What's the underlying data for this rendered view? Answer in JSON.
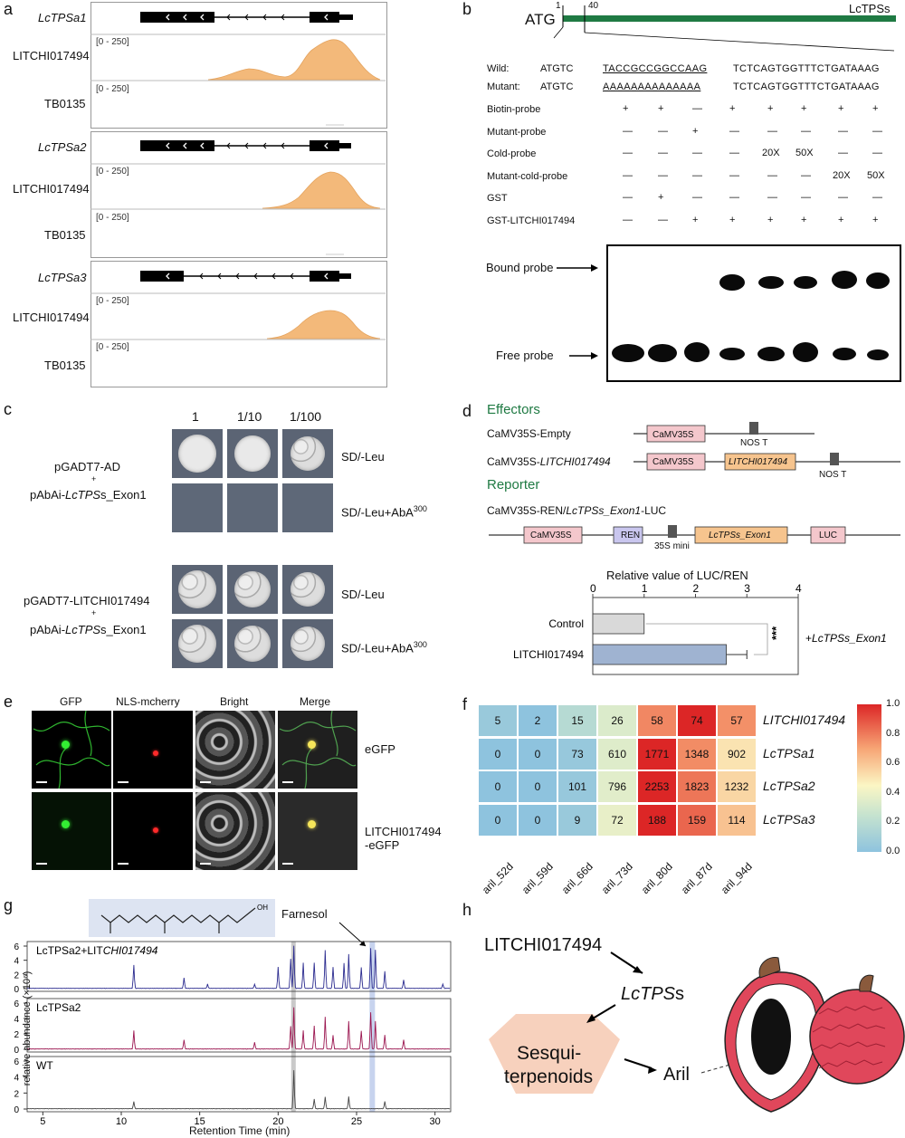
{
  "panels": {
    "a": "a",
    "b": "b",
    "c": "c",
    "d": "d",
    "e": "e",
    "f": "f",
    "g": "g",
    "h": "h"
  },
  "a": {
    "genes": [
      {
        "name": "LcTPSa1",
        "track1": "LITCHI017494",
        "range1": "[0 - 250]",
        "track2": "TB0135",
        "range2": "[0 - 250]"
      },
      {
        "name": "LcTPSa2",
        "track1": "LITCHI017494",
        "range1": "[0 - 250]",
        "track2": "TB0135",
        "range2": "[0 - 250]"
      },
      {
        "name": "LcTPSa3",
        "track1": "LITCHI017494",
        "range1": "[0 - 250]",
        "track2": "TB0135",
        "range2": "[0 - 250]"
      }
    ]
  },
  "b": {
    "atg": "ATG",
    "pos1": "1",
    "pos40": "40",
    "gene": "LcTPSs",
    "wild_label": "Wild:",
    "wild_a": "ATGTC",
    "wild_b": "TACCGCCGGCCAAG",
    "wild_c": "TCTCAGTGGTTTCTGATAAAG",
    "mut_label": "Mutant:",
    "mut_a": "ATGTC",
    "mut_b": "AAAAAAAAAAAAAA",
    "mut_c": "TCTCAGTGGTTTCTGATAAAG",
    "rows": [
      {
        "label": "Biotin-probe",
        "vals": [
          "+",
          "+",
          "—",
          "+",
          "+",
          "+",
          "+",
          "+"
        ]
      },
      {
        "label": "Mutant-probe",
        "vals": [
          "—",
          "—",
          "+",
          "—",
          "—",
          "—",
          "—",
          "—"
        ]
      },
      {
        "label": "Cold-probe",
        "vals": [
          "—",
          "—",
          "—",
          "—",
          "20X",
          "50X",
          "—",
          "—"
        ]
      },
      {
        "label": "Mutant-cold-probe",
        "vals": [
          "—",
          "—",
          "—",
          "—",
          "—",
          "—",
          "20X",
          "50X"
        ]
      },
      {
        "label": "GST",
        "vals": [
          "—",
          "+",
          "—",
          "—",
          "—",
          "—",
          "—",
          "—"
        ]
      },
      {
        "label": "GST-LITCHI017494",
        "vals": [
          "—",
          "—",
          "+",
          "+",
          "+",
          "+",
          "+",
          "+"
        ]
      }
    ],
    "bound": "Bound probe",
    "free": "Free probe"
  },
  "c": {
    "dilutions": [
      "1",
      "1/10",
      "1/100"
    ],
    "g1a": "pGADT7-AD",
    "g1b": "+",
    "g1c": "pAbAi-",
    "g1d": "LcTPS",
    "g1e": "s_Exon1",
    "g2a": "pGADT7-LITCHI017494",
    "g2b": "+",
    "g2c": "pAbAi-",
    "g2d": "LcTPS",
    "g2e": "s_Exon1",
    "m1": "SD/-Leu",
    "m2": "SD/-Leu+AbA",
    "m2sup": "300",
    "m3": "SD/-Leu",
    "m4": "SD/-Leu+AbA",
    "m4sup": "300"
  },
  "d": {
    "effectors": "Effectors",
    "eff1": "CaMV35S-Empty",
    "eff2a": "CaMV35S-",
    "eff2b": "LITCHI017494",
    "camv": "CaMV35S",
    "nos": "NOS T",
    "litchi": "LITCHI017494",
    "reporter": "Reporter",
    "rep1a": "CaMV35S-REN/",
    "rep1b": "LcTPSs_Exon1",
    "rep1c": "-LUC",
    "ren": "REN",
    "mini": "35S mini",
    "exon": "LcTPSs_Exon1",
    "luc": "LUC"
  },
  "chart_data": [
    {
      "type": "bar",
      "title": "Relative value of LUC/REN",
      "categories": [
        "Control",
        "LITCHI017494"
      ],
      "values": [
        1.0,
        2.6
      ],
      "errors": [
        0,
        0.4
      ],
      "xlim": [
        0,
        4
      ],
      "ticks": [
        "0",
        "1",
        "2",
        "3",
        "4"
      ],
      "significance": "***",
      "annotation_a": "+",
      "annotation_b": "LcTPSs_Exon1",
      "colors": [
        "#d9d9d9",
        "#9fb3d1"
      ]
    },
    {
      "type": "heatmap",
      "rows": [
        "LITCHI017494",
        "LcTPSa1",
        "LcTPSa2",
        "LcTPSa3"
      ],
      "columns": [
        "aril_52d",
        "aril_59d",
        "aril_66d",
        "aril_73d",
        "aril_80d",
        "aril_87d",
        "aril_94d"
      ],
      "values": [
        [
          5,
          2,
          15,
          26,
          58,
          74,
          57
        ],
        [
          0,
          0,
          73,
          610,
          1771,
          1348,
          902
        ],
        [
          0,
          0,
          101,
          796,
          2253,
          1823,
          1232
        ],
        [
          0,
          0,
          9,
          72,
          188,
          159,
          114
        ]
      ],
      "scaled": [
        [
          0.05,
          0.0,
          0.18,
          0.33,
          0.77,
          1.0,
          0.75
        ],
        [
          0.0,
          0.0,
          0.04,
          0.34,
          1.0,
          0.76,
          0.51
        ],
        [
          0.0,
          0.0,
          0.04,
          0.35,
          1.0,
          0.81,
          0.55
        ],
        [
          0.0,
          0.0,
          0.05,
          0.38,
          1.0,
          0.85,
          0.61
        ]
      ],
      "colorbar": [
        "0.0",
        "0.2",
        "0.4",
        "0.6",
        "0.8",
        "1.0"
      ]
    },
    {
      "type": "line",
      "series": [
        {
          "name": "LcTPSa2+LITCHI017494",
          "color": "#2b2b8f"
        },
        {
          "name": "LcTPSa2",
          "color": "#9b1650"
        },
        {
          "name": "WT",
          "color": "#444444"
        }
      ],
      "xlim": [
        4,
        31
      ],
      "xticks": [
        "5",
        "10",
        "15",
        "20",
        "25",
        "30"
      ],
      "xlabel": "Retention Time (min)",
      "ylabel": "relative abundance (×10⁶)",
      "yticks": [
        "0",
        "2",
        "4",
        "6"
      ],
      "annotation": "Farnesol"
    }
  ],
  "e": {
    "cols": [
      "GFP",
      "NLS-mcherry",
      "Bright",
      "Merge"
    ],
    "row1": "eGFP",
    "row2a": "LITCHI017494",
    "row2b": "-eGFP"
  },
  "h": {
    "tf": "LITCHI017494",
    "tps_a": "LcTPS",
    "tps_b": "s",
    "sesq_a": "Sesqui-",
    "sesq_b": "terpenoids",
    "aril": "Aril"
  }
}
